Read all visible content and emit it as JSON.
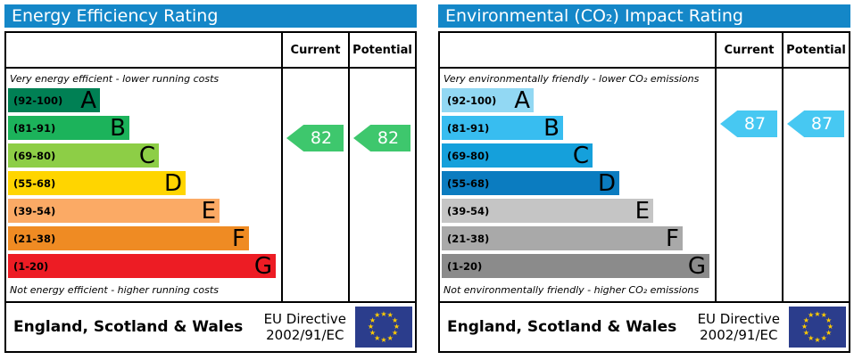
{
  "colors": {
    "header_bg": "#1487c8",
    "eu_flag_bg": "#2b3d8c",
    "eu_star": "#ffcc00",
    "energy_arrow": "#3ec76d",
    "co2_arrow": "#47c8f2"
  },
  "panels": [
    {
      "title": "Energy Efficiency Rating",
      "columns": {
        "current": "Current",
        "potential": "Potential"
      },
      "top_note": "Very energy efficient - lower running costs",
      "bottom_note": "Not energy efficient - higher running costs",
      "bands": [
        {
          "letter": "A",
          "range": "(92-100)",
          "color": "#008054"
        },
        {
          "letter": "B",
          "range": "(81-91)",
          "color": "#1cb35b"
        },
        {
          "letter": "C",
          "range": "(69-80)",
          "color": "#8dce46"
        },
        {
          "letter": "D",
          "range": "(55-68)",
          "color": "#ffd500"
        },
        {
          "letter": "E",
          "range": "(39-54)",
          "color": "#fbaa65"
        },
        {
          "letter": "F",
          "range": "(21-38)",
          "color": "#ef8b23"
        },
        {
          "letter": "G",
          "range": "(1-20)",
          "color": "#ed1c24"
        }
      ],
      "current_value": "82",
      "potential_value": "82",
      "arrow_color": "#3ec76d",
      "footer": {
        "region": "England, Scotland & Wales",
        "directive_line1": "EU Directive",
        "directive_line2": "2002/91/EC"
      }
    },
    {
      "title": "Environmental (CO₂) Impact Rating",
      "columns": {
        "current": "Current",
        "potential": "Potential"
      },
      "top_note": "Very environmentally friendly - lower CO₂ emissions",
      "bottom_note": "Not environmentally friendly - higher CO₂ emissions",
      "bands": [
        {
          "letter": "A",
          "range": "(92-100)",
          "color": "#92d8f3"
        },
        {
          "letter": "B",
          "range": "(81-91)",
          "color": "#38bdf0"
        },
        {
          "letter": "C",
          "range": "(69-80)",
          "color": "#15a0db"
        },
        {
          "letter": "D",
          "range": "(55-68)",
          "color": "#0b7cc0"
        },
        {
          "letter": "E",
          "range": "(39-54)",
          "color": "#c5c5c5"
        },
        {
          "letter": "F",
          "range": "(21-38)",
          "color": "#a9a9a9"
        },
        {
          "letter": "G",
          "range": "(1-20)",
          "color": "#8b8b8b"
        }
      ],
      "current_value": "87",
      "potential_value": "87",
      "arrow_color": "#47c8f2",
      "footer": {
        "region": "England, Scotland & Wales",
        "directive_line1": "EU Directive",
        "directive_line2": "2002/91/EC"
      }
    }
  ],
  "chart_data": [
    {
      "type": "bar",
      "title": "Energy Efficiency Rating",
      "categories": [
        "A (92-100)",
        "B (81-91)",
        "C (69-80)",
        "D (55-68)",
        "E (39-54)",
        "F (21-38)",
        "G (1-20)"
      ],
      "band_ranges": [
        [
          92,
          100
        ],
        [
          81,
          91
        ],
        [
          69,
          80
        ],
        [
          55,
          68
        ],
        [
          39,
          54
        ],
        [
          21,
          38
        ],
        [
          1,
          20
        ]
      ],
      "band_colors": [
        "#008054",
        "#1cb35b",
        "#8dce46",
        "#ffd500",
        "#fbaa65",
        "#ef8b23",
        "#ed1c24"
      ],
      "series": [
        {
          "name": "Current",
          "values": [
            82
          ]
        },
        {
          "name": "Potential",
          "values": [
            82
          ]
        }
      ],
      "current_rating": 82,
      "current_band": "B",
      "potential_rating": 82,
      "potential_band": "B",
      "xlabel": "",
      "ylabel": "",
      "scale_range": [
        1,
        100
      ],
      "annotations": [
        "Very energy efficient - lower running costs",
        "Not energy efficient - higher running costs",
        "England, Scotland & Wales",
        "EU Directive 2002/91/EC"
      ]
    },
    {
      "type": "bar",
      "title": "Environmental (CO₂) Impact Rating",
      "categories": [
        "A (92-100)",
        "B (81-91)",
        "C (69-80)",
        "D (55-68)",
        "E (39-54)",
        "F (21-38)",
        "G (1-20)"
      ],
      "band_ranges": [
        [
          92,
          100
        ],
        [
          81,
          91
        ],
        [
          69,
          80
        ],
        [
          55,
          68
        ],
        [
          39,
          54
        ],
        [
          21,
          38
        ],
        [
          1,
          20
        ]
      ],
      "band_colors": [
        "#92d8f3",
        "#38bdf0",
        "#15a0db",
        "#0b7cc0",
        "#c5c5c5",
        "#a9a9a9",
        "#8b8b8b"
      ],
      "series": [
        {
          "name": "Current",
          "values": [
            87
          ]
        },
        {
          "name": "Potential",
          "values": [
            87
          ]
        }
      ],
      "current_rating": 87,
      "current_band": "B",
      "potential_rating": 87,
      "potential_band": "B",
      "xlabel": "",
      "ylabel": "",
      "scale_range": [
        1,
        100
      ],
      "annotations": [
        "Very environmentally friendly - lower CO₂ emissions",
        "Not environmentally friendly - higher CO₂ emissions",
        "England, Scotland & Wales",
        "EU Directive 2002/91/EC"
      ]
    }
  ]
}
